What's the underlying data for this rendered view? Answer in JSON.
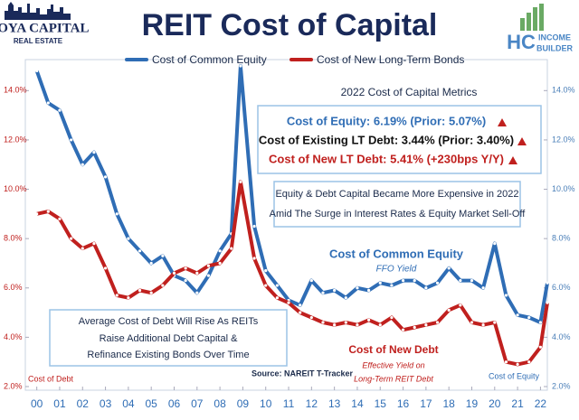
{
  "chart_data": {
    "type": "line",
    "title": "REIT Cost of Capital",
    "x": [
      2000,
      2000.5,
      2001,
      2001.5,
      2002,
      2002.5,
      2003,
      2003.5,
      2004,
      2004.5,
      2005,
      2005.5,
      2006,
      2006.5,
      2007,
      2007.5,
      2008,
      2008.5,
      2008.9,
      2009.5,
      2010,
      2010.5,
      2011,
      2011.5,
      2012,
      2012.5,
      2013,
      2013.5,
      2014,
      2014.5,
      2015,
      2015.5,
      2016,
      2016.5,
      2017,
      2017.5,
      2018,
      2018.5,
      2019,
      2019.5,
      2020,
      2020.5,
      2021,
      2021.5,
      2022,
      2022.3
    ],
    "series": [
      {
        "name": "Cost of Common Equity",
        "color": "#2f6db5",
        "values": [
          14.8,
          13.5,
          13.2,
          12.0,
          11.0,
          11.5,
          10.5,
          9.0,
          8.0,
          7.5,
          7.0,
          7.3,
          6.5,
          6.3,
          5.8,
          6.5,
          7.5,
          8.2,
          15.0,
          8.5,
          6.7,
          6.1,
          5.5,
          5.3,
          6.3,
          5.8,
          5.9,
          5.6,
          6.0,
          5.9,
          6.2,
          6.1,
          6.3,
          6.3,
          6.0,
          6.2,
          6.8,
          6.3,
          6.3,
          6.0,
          7.8,
          5.7,
          4.9,
          4.8,
          4.6,
          6.2
        ]
      },
      {
        "name": "Cost of New Long-Term Bonds",
        "color": "#c0201e",
        "values": [
          9.0,
          9.1,
          8.8,
          8.0,
          7.6,
          7.8,
          6.8,
          5.7,
          5.6,
          5.9,
          5.8,
          6.1,
          6.6,
          6.8,
          6.6,
          6.9,
          7.0,
          7.6,
          10.3,
          7.2,
          6.1,
          5.6,
          5.4,
          5.0,
          4.8,
          4.6,
          4.5,
          4.6,
          4.5,
          4.7,
          4.5,
          4.8,
          4.3,
          4.4,
          4.5,
          4.6,
          5.1,
          5.3,
          4.6,
          4.5,
          4.6,
          3.0,
          2.9,
          3.0,
          3.6,
          5.4
        ]
      }
    ],
    "xlim": [
      1999.5,
      2022.3
    ],
    "xticks": [
      {
        "value": 2000,
        "label": "00"
      },
      {
        "value": 2001,
        "label": "01"
      },
      {
        "value": 2002,
        "label": "02"
      },
      {
        "value": 2003,
        "label": "03"
      },
      {
        "value": 2004,
        "label": "04"
      },
      {
        "value": 2005,
        "label": "05"
      },
      {
        "value": 2006,
        "label": "06"
      },
      {
        "value": 2007,
        "label": "07"
      },
      {
        "value": 2008,
        "label": "08"
      },
      {
        "value": 2009,
        "label": "09"
      },
      {
        "value": 2010,
        "label": "10"
      },
      {
        "value": 2011,
        "label": "11"
      },
      {
        "value": 2012,
        "label": "12"
      },
      {
        "value": 2013,
        "label": "13"
      },
      {
        "value": 2014,
        "label": "14"
      },
      {
        "value": 2015,
        "label": "15"
      },
      {
        "value": 2016,
        "label": "16"
      },
      {
        "value": 2017,
        "label": "17"
      },
      {
        "value": 2018,
        "label": "18"
      },
      {
        "value": 2019,
        "label": "19"
      },
      {
        "value": 2020,
        "label": "20"
      },
      {
        "value": 2021,
        "label": "21"
      },
      {
        "value": 2022,
        "label": "22"
      }
    ],
    "ylim": [
      2,
      15
    ],
    "yticks": [
      {
        "value": 2,
        "label": "2.0%"
      },
      {
        "value": 4,
        "label": "4.0%"
      },
      {
        "value": 6,
        "label": "6.0%"
      },
      {
        "value": 8,
        "label": "8.0%"
      },
      {
        "value": 10,
        "label": "10.0%"
      },
      {
        "value": 12,
        "label": "12.0%"
      },
      {
        "value": 14,
        "label": "14.0%"
      }
    ],
    "y2lim": [
      2,
      15
    ],
    "y2ticks": [
      {
        "value": 2,
        "label": "2.0%"
      },
      {
        "value": 4,
        "label": "4.0%"
      },
      {
        "value": 6,
        "label": "6.0%"
      },
      {
        "value": 8,
        "label": "8.0%"
      },
      {
        "value": 10,
        "label": "10.0%"
      },
      {
        "value": 12,
        "label": "12.0%"
      },
      {
        "value": 14,
        "label": "14.0%"
      }
    ],
    "grid": false,
    "annotations": [
      "2022 Cost of Capital Metrics",
      "Cost of Equity: 6.19% (Prior: 5.07%)",
      "Cost of Existing LT Debt: 3.44% (Prior: 3.40%)",
      "Cost of New LT Debt: 5.41% (+230bps Y/Y)",
      "Equity & Debt Capital Became More Expensive in 2022",
      "Amid The Surge in Interest Rates & Equity Market Sell-Off",
      "Cost of Common Equity",
      "FFO Yield",
      "Cost of New Debt",
      "Effective Yield on",
      "Long-Term REIT Debt",
      "Average Cost of Debt Will Rise As REITs",
      "Raise Additional Debt Capital &",
      "Refinance Existing Bonds Over Time",
      "Cost of Debt",
      "Cost of Equity",
      "Source: NAREIT T-Tracker"
    ]
  },
  "branding": {
    "left": [
      "HOYA CAPITAL",
      "REAL ESTATE"
    ],
    "right": [
      "HC",
      "INCOME",
      "BUILDER"
    ]
  }
}
